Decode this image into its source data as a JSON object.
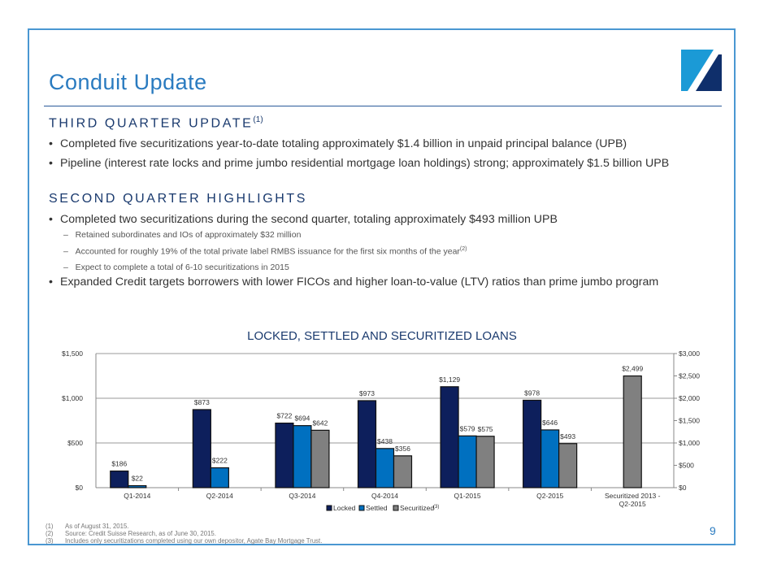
{
  "title": "Conduit Update",
  "page_number": "9",
  "section1": {
    "heading": "THIRD QUARTER UPDATE",
    "note": "(1)",
    "bullets": [
      "Completed five securitizations year-to-date totaling approximately $1.4 billion in unpaid principal balance (UPB)",
      "Pipeline (interest rate locks and prime jumbo residential mortgage loan holdings) strong; approximately $1.5 billion UPB"
    ]
  },
  "section2": {
    "heading": "SECOND QUARTER HIGHLIGHTS",
    "bullets": [
      "Completed two securitizations during the second quarter, totaling approximately $493 million UPB",
      "Expanded Credit targets borrowers with lower FICOs and higher loan-to-value (LTV) ratios than prime jumbo program"
    ],
    "sub_bullets": [
      "Retained subordinates and IOs of approximately $32 million",
      "Accounted for roughly 19% of the total private label RMBS issuance for the first six months of the year",
      "Expect to complete a total of 6-10 securitizations in 2015"
    ],
    "sub_note": "(2)"
  },
  "chart_data": {
    "type": "bar",
    "title": "LOCKED, SETTLED AND SECURITIZED LOANS",
    "categories": [
      "Q1-2014",
      "Q2-2014",
      "Q3-2014",
      "Q4-2014",
      "Q1-2015",
      "Q2-2015",
      "Securitized 2013 - Q2-2015"
    ],
    "category_labels": [
      [
        "Q1-2014"
      ],
      [
        "Q2-2014"
      ],
      [
        "Q3-2014"
      ],
      [
        "Q4-2014"
      ],
      [
        "Q1-2015"
      ],
      [
        "Q2-2015"
      ],
      [
        "Securitized 2013 -",
        "Q2-2015"
      ]
    ],
    "series": [
      {
        "name": "Locked",
        "color": "#0d1f5c",
        "axis": "left",
        "values": [
          186,
          873,
          722,
          973,
          1129,
          978,
          null
        ],
        "labels": [
          "$186",
          "$873",
          "$722",
          "$973",
          "$1,129",
          "$978",
          null
        ]
      },
      {
        "name": "Settled",
        "color": "#0070c0",
        "axis": "left",
        "values": [
          22,
          222,
          694,
          438,
          579,
          646,
          null
        ],
        "labels": [
          "$22",
          "$222",
          "$694",
          "$438",
          "$579",
          "$646",
          null
        ]
      },
      {
        "name": "Securitized",
        "color": "#808080",
        "axis": "left",
        "values": [
          null,
          null,
          642,
          356,
          575,
          493,
          null
        ],
        "labels": [
          null,
          null,
          "$642",
          "$356",
          "$575",
          "$493",
          null
        ]
      },
      {
        "name": "Securitized cumulative",
        "color": "#808080",
        "axis": "right",
        "values": [
          null,
          null,
          null,
          null,
          null,
          null,
          2499
        ],
        "labels": [
          null,
          null,
          null,
          null,
          null,
          null,
          "$2,499"
        ]
      }
    ],
    "legend": [
      "Locked",
      "Settled",
      "Securitized"
    ],
    "legend_note": "(3)",
    "legend_position": "bottom",
    "ylim": [
      0,
      1500
    ],
    "yticks": [
      "$0",
      "$500",
      "$1,000",
      "$1,500"
    ],
    "y2lim": [
      0,
      3000
    ],
    "y2ticks": [
      "$0",
      "$500",
      "$1,000",
      "$1,500",
      "$2,000",
      "$2,500",
      "$3,000"
    ]
  },
  "footnotes": [
    [
      "(1)",
      "As of August 31, 2015."
    ],
    [
      "(2)",
      "Source: Credit Suisse Research, as of June 30, 2015."
    ],
    [
      "(3)",
      "Includes only securitizations completed using our own depositor, Agate Bay Mortgage Trust."
    ]
  ]
}
